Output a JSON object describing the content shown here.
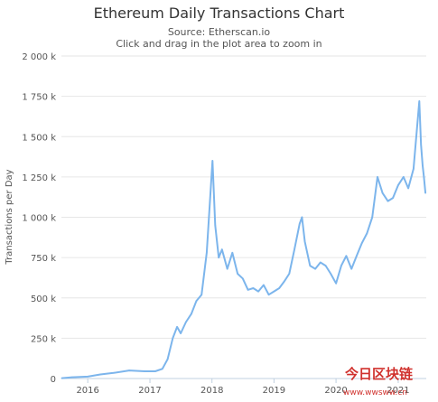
{
  "chart_data": {
    "type": "line",
    "title": "Ethereum Daily Transactions Chart",
    "subtitle": "Source: Etherscan.io",
    "subtitle2": "Click and drag in the plot area to zoom in",
    "xlabel": "",
    "ylabel": "Transactions per Day",
    "ylim": [
      0,
      2000000
    ],
    "xlim": [
      "2015-07-30",
      "2021-06-15"
    ],
    "grid": true,
    "legend": "none",
    "y_ticks": [
      {
        "value": 0,
        "label": "0"
      },
      {
        "value": 250000,
        "label": "250 k"
      },
      {
        "value": 500000,
        "label": "500 k"
      },
      {
        "value": 750000,
        "label": "750 k"
      },
      {
        "value": 1000000,
        "label": "1 000 k"
      },
      {
        "value": 1250000,
        "label": "1 250 k"
      },
      {
        "value": 1500000,
        "label": "1 500 k"
      },
      {
        "value": 1750000,
        "label": "1 750 k"
      },
      {
        "value": 2000000,
        "label": "2 000 k"
      }
    ],
    "x_ticks": [
      {
        "value": "2016-01-01",
        "label": "2016"
      },
      {
        "value": "2017-01-01",
        "label": "2017"
      },
      {
        "value": "2018-01-01",
        "label": "2018"
      },
      {
        "value": "2019-01-01",
        "label": "2019"
      },
      {
        "value": "2020-01-01",
        "label": "2020"
      },
      {
        "value": "2021-01-01",
        "label": "2021"
      }
    ],
    "series": [
      {
        "color": "#7cb5ec",
        "x": [
          "2015-08-01",
          "2015-10-01",
          "2016-01-01",
          "2016-03-15",
          "2016-06-01",
          "2016-09-01",
          "2016-12-01",
          "2017-02-01",
          "2017-03-15",
          "2017-04-15",
          "2017-05-15",
          "2017-06-10",
          "2017-07-01",
          "2017-08-01",
          "2017-09-01",
          "2017-10-01",
          "2017-11-01",
          "2017-12-01",
          "2017-12-20",
          "2018-01-04",
          "2018-01-20",
          "2018-02-10",
          "2018-03-01",
          "2018-04-01",
          "2018-05-01",
          "2018-06-01",
          "2018-07-01",
          "2018-08-01",
          "2018-09-01",
          "2018-10-01",
          "2018-11-01",
          "2018-12-01",
          "2019-01-01",
          "2019-02-01",
          "2019-03-01",
          "2019-04-01",
          "2019-05-01",
          "2019-06-01",
          "2019-06-15",
          "2019-07-01",
          "2019-08-01",
          "2019-09-01",
          "2019-10-01",
          "2019-11-01",
          "2019-12-01",
          "2020-01-01",
          "2020-02-01",
          "2020-03-01",
          "2020-04-01",
          "2020-05-01",
          "2020-06-01",
          "2020-07-01",
          "2020-08-01",
          "2020-09-01",
          "2020-10-01",
          "2020-11-01",
          "2020-12-01",
          "2021-01-01",
          "2021-02-01",
          "2021-03-01",
          "2021-04-01",
          "2021-05-05",
          "2021-05-15",
          "2021-05-25",
          "2021-06-01",
          "2021-06-10"
        ],
        "values": [
          2000,
          8000,
          12000,
          25000,
          35000,
          50000,
          45000,
          45000,
          60000,
          120000,
          250000,
          320000,
          280000,
          350000,
          400000,
          480000,
          520000,
          780000,
          1100000,
          1350000,
          950000,
          750000,
          800000,
          680000,
          780000,
          650000,
          620000,
          550000,
          560000,
          540000,
          580000,
          520000,
          540000,
          560000,
          600000,
          650000,
          800000,
          960000,
          1000000,
          850000,
          700000,
          680000,
          720000,
          700000,
          650000,
          590000,
          700000,
          760000,
          680000,
          760000,
          840000,
          900000,
          1000000,
          1250000,
          1150000,
          1100000,
          1120000,
          1200000,
          1250000,
          1180000,
          1300000,
          1720000,
          1450000,
          1320000,
          1250000,
          1150000
        ]
      }
    ]
  },
  "watermark": {
    "line1": "今日区块链",
    "line2": "www.wwsww.cn"
  }
}
